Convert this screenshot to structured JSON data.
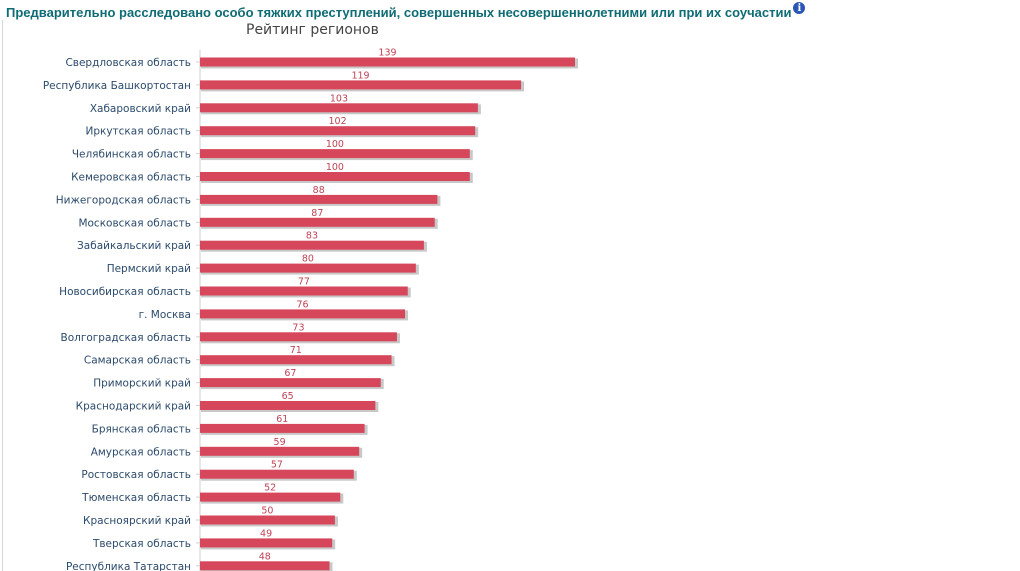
{
  "header": {
    "title": "Предварительно расследовано особо тяжких преступлений, совершенных несовершеннолетними или при их соучастии",
    "info_icon": "info-icon"
  },
  "colors": {
    "bar": "#d6475b",
    "shadow": "#c8c8c8",
    "value_label": "#c04356",
    "title": "#0f6b74",
    "info": "#2a55b8"
  },
  "chart_data": {
    "type": "bar",
    "orientation": "horizontal",
    "title": "Рейтинг регионов",
    "xlabel": "",
    "ylabel": "",
    "xlim": [
      0,
      139
    ],
    "grid": false,
    "legend": "none",
    "categories": [
      "Свердловская область",
      "Республика Башкортостан",
      "Хабаровский край",
      "Иркутская область",
      "Челябинская область",
      "Кемеровская область",
      "Нижегородская область",
      "Московская область",
      "Забайкальский край",
      "Пермский край",
      "Новосибирская область",
      "г. Москва",
      "Волгоградская область",
      "Самарская область",
      "Приморский край",
      "Краснодарский край",
      "Брянская область",
      "Амурская область",
      "Ростовская область",
      "Тюменская область",
      "Красноярский край",
      "Тверская область",
      "Республика Татарстан"
    ],
    "values": [
      139,
      119,
      103,
      102,
      100,
      100,
      88,
      87,
      83,
      80,
      77,
      76,
      73,
      71,
      67,
      65,
      61,
      59,
      57,
      52,
      50,
      49,
      48
    ]
  }
}
